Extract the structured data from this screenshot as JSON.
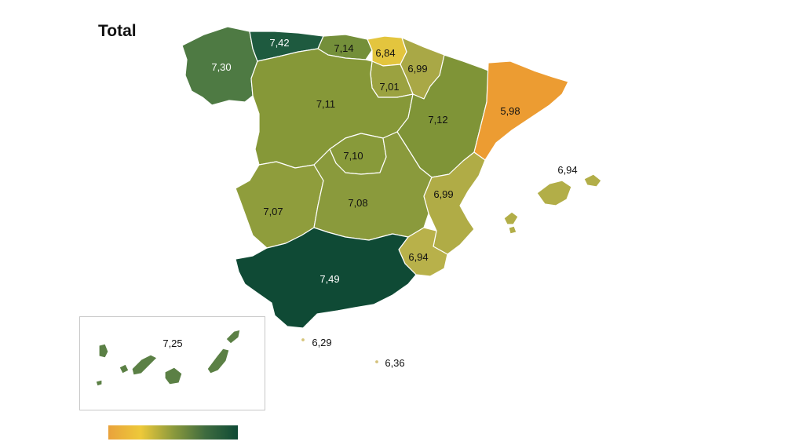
{
  "title": "Total",
  "legend": {
    "gradient": [
      "#E9A23B",
      "#EDC93A",
      "#8C9A3C",
      "#3E6B3F",
      "#0F4A35"
    ]
  },
  "regions": [
    {
      "id": "galicia",
      "value": "7,30",
      "color": "#4E7A43",
      "text": "light"
    },
    {
      "id": "asturias",
      "value": "7,42",
      "color": "#1E5A3F",
      "text": "light"
    },
    {
      "id": "cantabria",
      "value": "7,14",
      "color": "#748F3A",
      "text": "dark"
    },
    {
      "id": "pais-vasco",
      "value": "6,84",
      "color": "#E3C53E",
      "text": "dark"
    },
    {
      "id": "navarra",
      "value": "6,99",
      "color": "#A9A846",
      "text": "dark"
    },
    {
      "id": "la-rioja",
      "value": "7,01",
      "color": "#9BA240",
      "text": "dark"
    },
    {
      "id": "castilla-y-leon",
      "value": "7,11",
      "color": "#869838",
      "text": "dark"
    },
    {
      "id": "aragon",
      "value": "7,12",
      "color": "#7F9437",
      "text": "dark"
    },
    {
      "id": "cataluna",
      "value": "5,98",
      "color": "#EC9C32",
      "text": "dark"
    },
    {
      "id": "baleares",
      "value": "6,94",
      "color": "#B2AE48",
      "text": "dark"
    },
    {
      "id": "madrid",
      "value": "7,10",
      "color": "#889A3A",
      "text": "dark"
    },
    {
      "id": "extremadura",
      "value": "7,07",
      "color": "#8F9D3C",
      "text": "dark"
    },
    {
      "id": "castilla-la-mancha",
      "value": "7,08",
      "color": "#8A9A3C",
      "text": "dark"
    },
    {
      "id": "valencia",
      "value": "6,99",
      "color": "#B0AC46",
      "text": "dark"
    },
    {
      "id": "murcia",
      "value": "6,94",
      "color": "#B8B14A",
      "text": "dark"
    },
    {
      "id": "andalucia",
      "value": "7,49",
      "color": "#0F4A35",
      "text": "light"
    },
    {
      "id": "ceuta",
      "value": "6,29",
      "color": "#D6C47A",
      "text": "dark"
    },
    {
      "id": "melilla",
      "value": "6,36",
      "color": "#D4C27C",
      "text": "dark"
    },
    {
      "id": "canarias",
      "value": "7,25",
      "color": "#5B8045",
      "text": "dark"
    }
  ]
}
